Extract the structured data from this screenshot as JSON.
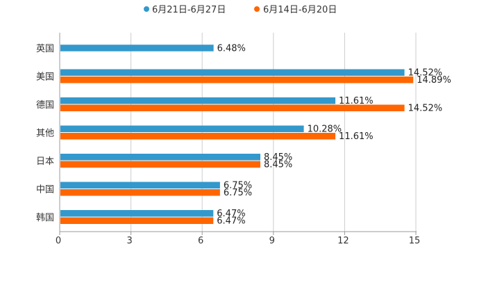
{
  "chart_data": {
    "type": "bar",
    "orientation": "horizontal",
    "title": "",
    "xlabel": "",
    "ylabel": "",
    "xlim": [
      0,
      15
    ],
    "x_ticks": [
      "0",
      "3",
      "6",
      "9",
      "12",
      "15"
    ],
    "grid": true,
    "legend_position": "top-center",
    "categories": [
      "英国",
      "美国",
      "德国",
      "其他",
      "日本",
      "中国",
      "韩国"
    ],
    "series": [
      {
        "name": "6月21日-6月27日",
        "color": "#3399cc",
        "values": [
          6.48,
          14.52,
          11.61,
          10.28,
          8.45,
          6.75,
          6.47
        ],
        "labels": [
          "6.48%",
          "14.52%",
          "11.61%",
          "10.28%",
          "8.45%",
          "6.75%",
          "6.47%"
        ]
      },
      {
        "name": "6月14日-6月20日",
        "color": "#ff6600",
        "values": [
          null,
          14.89,
          14.52,
          11.61,
          8.45,
          6.75,
          6.47
        ],
        "labels": [
          null,
          "14.89%",
          "14.52%",
          "11.61%",
          "8.45%",
          "6.75%",
          "6.47%"
        ]
      }
    ]
  }
}
